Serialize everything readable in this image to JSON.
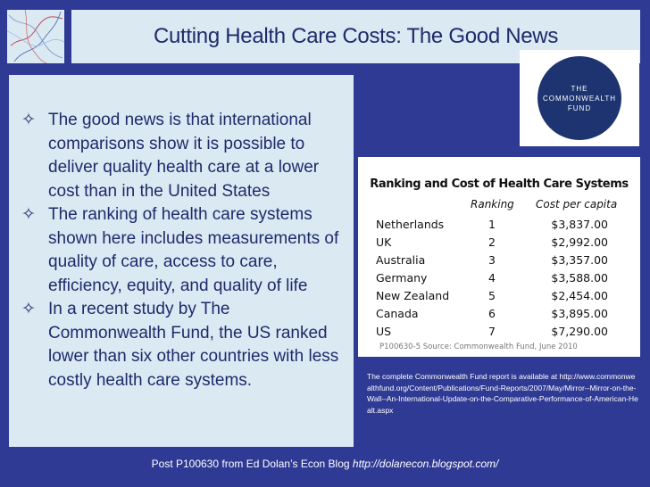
{
  "slide": {
    "title": "Cutting Health Care Costs: The Good News",
    "bullet_marker": "✧",
    "bullets": [
      "The good news is that international comparisons show it is possible to deliver quality health care at a lower cost than in the United States",
      "The ranking of health care systems shown here includes measurements of quality of care, access to care, efficiency, equity, and quality of life",
      "In a recent study by The Commonwealth Fund, the US ranked lower than six other countries with less costly health care systems."
    ]
  },
  "logo": {
    "line1": "THE",
    "line2": "COMMONWEALTH",
    "line3": "FUND"
  },
  "table": {
    "title": "Ranking and Cost of Health Care Systems",
    "headers": [
      "Ranking",
      "Cost per capita"
    ],
    "rows": [
      {
        "country": "Netherlands",
        "rank": "1",
        "cost": "$3,837.00"
      },
      {
        "country": "UK",
        "rank": "2",
        "cost": "$2,992.00"
      },
      {
        "country": "Australia",
        "rank": "3",
        "cost": "$3,357.00"
      },
      {
        "country": "Germany",
        "rank": "4",
        "cost": "$3,588.00"
      },
      {
        "country": "New Zealand",
        "rank": "5",
        "cost": "$2,454.00"
      },
      {
        "country": "Canada",
        "rank": "6",
        "cost": "$3,895.00"
      },
      {
        "country": "US",
        "rank": "7",
        "cost": "$7,290.00"
      }
    ],
    "source": "P100630-5 Source: Commonwealth Fund, June 2010"
  },
  "report_note": "The complete  Commonwealth Fund report is available at http://www.commonwealthfund.org/Content/Publications/Fund-Reports/2007/May/Mirror--Mirror-on-the-Wall--An-International-Update-on-the-Comparative-Performance-of-American-Healt.aspx",
  "footer": {
    "text": "Post P100630 from Ed Dolan’s Econ Blog ",
    "link": "http://dolanecon.blogspot.com/"
  }
}
